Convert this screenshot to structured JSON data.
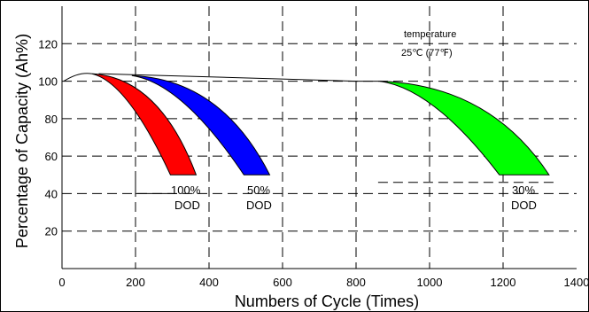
{
  "chart_data": {
    "type": "area",
    "title": "",
    "xlabel": "Numbers of Cycle (Times)",
    "ylabel": "Percentage of Capacity (Ah%)",
    "xlim": [
      0,
      1400
    ],
    "ylim": [
      0,
      140
    ],
    "x_ticks": [
      0,
      200,
      400,
      600,
      800,
      1000,
      1200,
      1400
    ],
    "y_ticks": [
      20,
      40,
      60,
      80,
      100,
      120
    ],
    "grid": true,
    "series": [
      {
        "label_line1": "100%",
        "label_line2": "DOD",
        "color": "#ff0000",
        "upper_end": [
          365,
          50
        ],
        "lower_end": [
          295,
          50
        ]
      },
      {
        "label_line1": "50%",
        "label_line2": "DOD",
        "color": "#0000ff",
        "upper_end": [
          565,
          50
        ],
        "lower_end": [
          495,
          50
        ]
      },
      {
        "label_line1": "30%",
        "label_line2": "DOD",
        "color": "#00ff00",
        "upper_end": [
          1325,
          50
        ],
        "lower_end": [
          1190,
          50
        ]
      }
    ],
    "annotation": {
      "line1": "temperature",
      "line2": "25℃ (77℉)"
    }
  }
}
